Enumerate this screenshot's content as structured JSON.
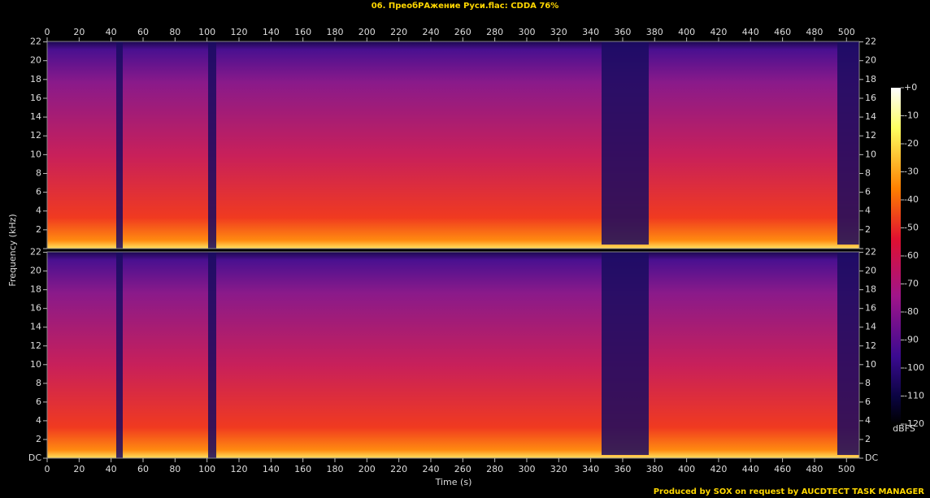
{
  "chart_data": {
    "type": "spectrogram",
    "title": "06. ПреобРАжение Руси.flac: CDDA 76%",
    "x_label": "Time (s)",
    "y_label": "Frequency (kHz)",
    "colorbar_label": "dBFS",
    "footer": "Produced by SOX on request by AUCDTECT TASK MANAGER",
    "xlim": [
      0,
      508
    ],
    "xticks": [
      0,
      20,
      40,
      60,
      80,
      100,
      120,
      140,
      160,
      180,
      200,
      220,
      240,
      260,
      280,
      300,
      320,
      340,
      360,
      380,
      400,
      420,
      440,
      460,
      480,
      500
    ],
    "ylim": [
      0,
      22.05
    ],
    "yticks": [
      {
        "value": 0,
        "label": "DC"
      },
      2,
      4,
      6,
      8,
      10,
      12,
      14,
      16,
      18,
      20,
      22
    ],
    "clim": [
      -120,
      0
    ],
    "cticks": [
      {
        "value": 0,
        "label": "+0"
      },
      -10,
      -20,
      -30,
      -40,
      -50,
      -60,
      -70,
      -80,
      -90,
      -100,
      -110,
      -120
    ]
  }
}
